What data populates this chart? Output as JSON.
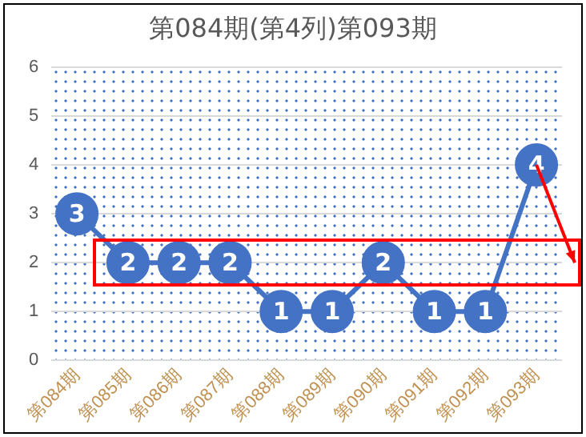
{
  "chart_data": {
    "type": "line",
    "title": "第084期(第4列)第093期",
    "categories": [
      "第084期",
      "第085期",
      "第086期",
      "第087期",
      "第088期",
      "第089期",
      "第090期",
      "第091期",
      "第092期",
      "第093期"
    ],
    "series": [
      {
        "color": "#4472c4",
        "values": [
          3,
          2,
          2,
          2,
          1,
          1,
          2,
          1,
          1,
          4
        ]
      }
    ],
    "ylim": [
      0,
      6
    ],
    "yticks": [
      0,
      1,
      2,
      3,
      4,
      5,
      6
    ],
    "grid": "y",
    "marker": "circle",
    "data_labels": true,
    "legend": false
  }
}
